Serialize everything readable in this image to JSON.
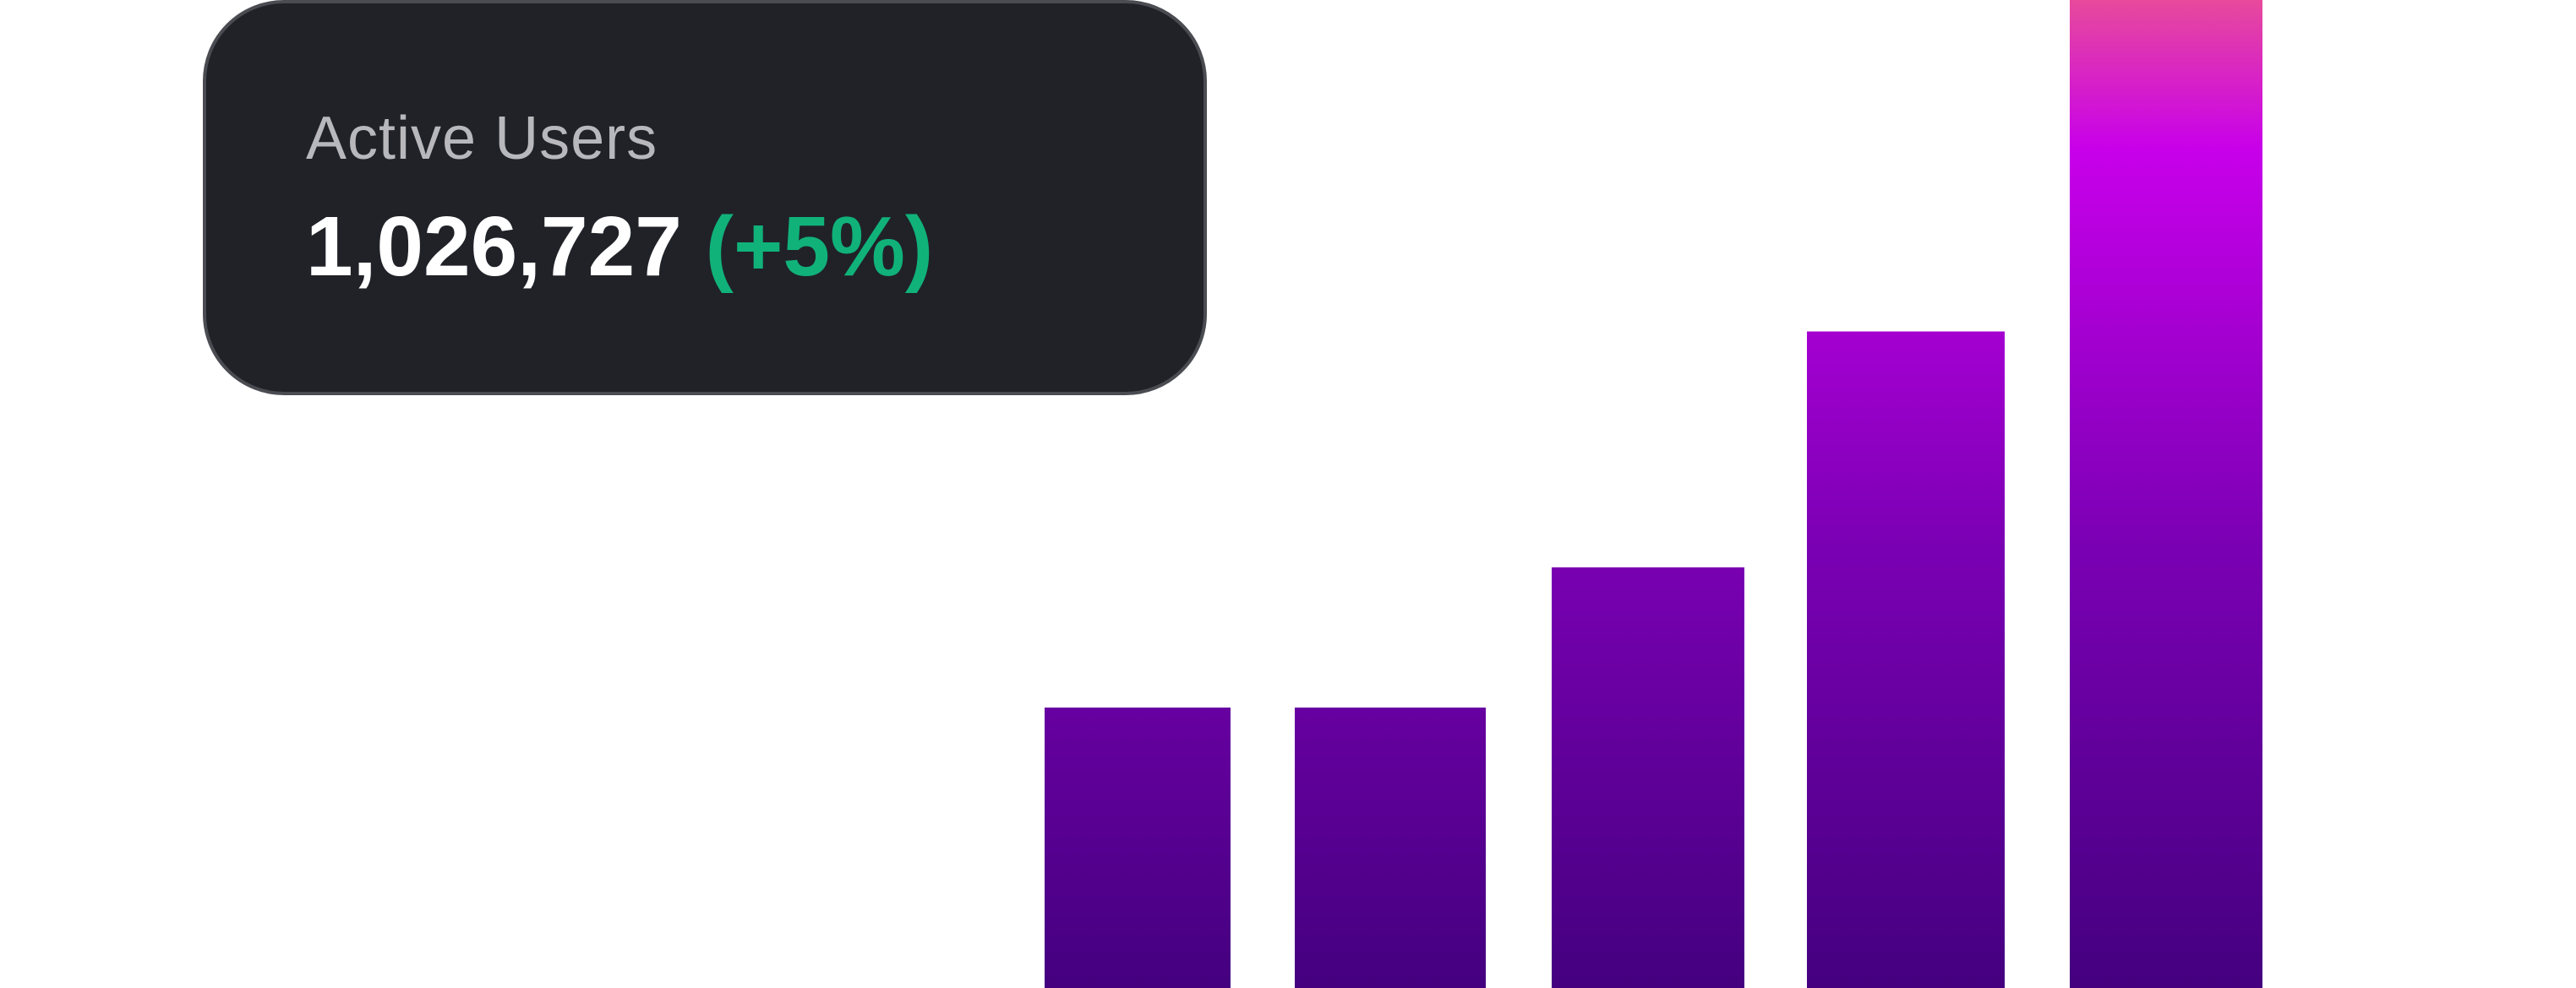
{
  "card": {
    "label": "Active Users",
    "value": "1,026,727",
    "change": "(+5%)",
    "change_color": "#10b27a"
  },
  "chart_data": {
    "type": "bar",
    "title": "",
    "xlabel": "",
    "ylabel": "",
    "categories": [
      "",
      "",
      "",
      "",
      ""
    ],
    "values": [
      44,
      44,
      66,
      103,
      155
    ],
    "ylim": [
      0,
      155
    ],
    "grid": false,
    "legend": "none",
    "colors": {
      "bottom": "#44007f",
      "middle": "#c800ea",
      "top": "#e84a9c"
    }
  }
}
